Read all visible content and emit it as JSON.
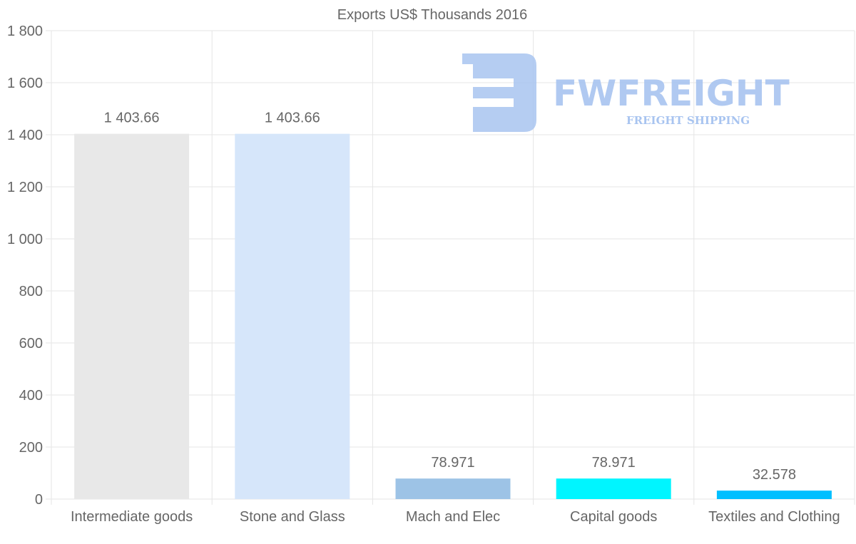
{
  "chart_data": {
    "type": "bar",
    "title": "Exports US$ Thousands 2016",
    "categories": [
      "Intermediate goods",
      "Stone and Glass",
      "Mach and Elec",
      "Capital goods",
      "Textiles and Clothing"
    ],
    "values": [
      1403.66,
      1403.66,
      78.971,
      78.971,
      32.578
    ],
    "value_labels": [
      "1 403.66",
      "1 403.66",
      "78.971",
      "78.971",
      "32.578"
    ],
    "bar_colors": [
      "#e8e8e8",
      "#d6e6fa",
      "#9dc3e6",
      "#00f5ff",
      "#00bfff"
    ],
    "ylim": [
      0,
      1800
    ],
    "y_ticks": [
      0,
      200,
      400,
      600,
      800,
      1000,
      1200,
      1400,
      1600,
      1800
    ],
    "y_tick_labels": [
      "0",
      "200",
      "400",
      "600",
      "800",
      "1 000",
      "1 200",
      "1 400",
      "1 600",
      "1 800"
    ],
    "xlabel": "",
    "ylabel": "",
    "grid": true,
    "legend": "none"
  },
  "watermark": {
    "name": "FWFREIGHT",
    "tagline": "FREIGHT SHIPPING",
    "color": "#a8c4f0"
  }
}
